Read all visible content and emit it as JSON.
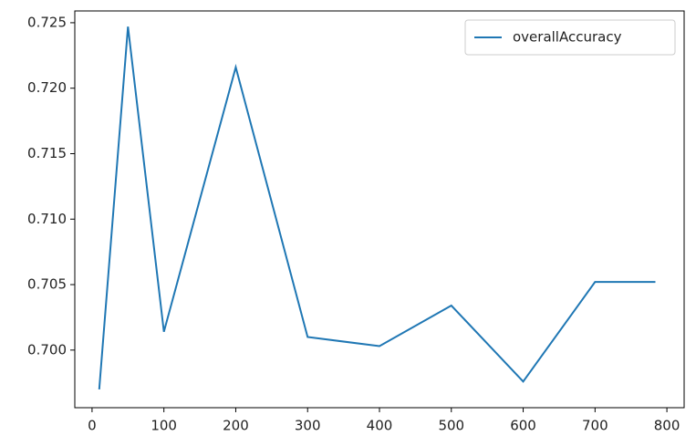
{
  "chart_data": {
    "type": "line",
    "x": [
      10,
      50,
      100,
      200,
      300,
      400,
      500,
      600,
      700,
      784
    ],
    "series": [
      {
        "name": "overallAccuracy",
        "color": "#1f77b4",
        "values": [
          0.697,
          0.7247,
          0.7014,
          0.7216,
          0.701,
          0.7003,
          0.7034,
          0.6976,
          0.7052,
          0.7052
        ]
      }
    ],
    "xlim": [
      -24,
      824
    ],
    "xticks": [
      0,
      100,
      200,
      300,
      400,
      500,
      600,
      700,
      800
    ],
    "ylim": [
      0.6956,
      0.7259
    ],
    "yticks": [
      {
        "value": 0.7,
        "label": "0.700"
      },
      0.705,
      {
        "value": 0.71,
        "label": "0.710"
      },
      0.715,
      {
        "value": 0.72,
        "label": "0.720"
      },
      0.725
    ],
    "grid": false,
    "legend": "upper right"
  }
}
